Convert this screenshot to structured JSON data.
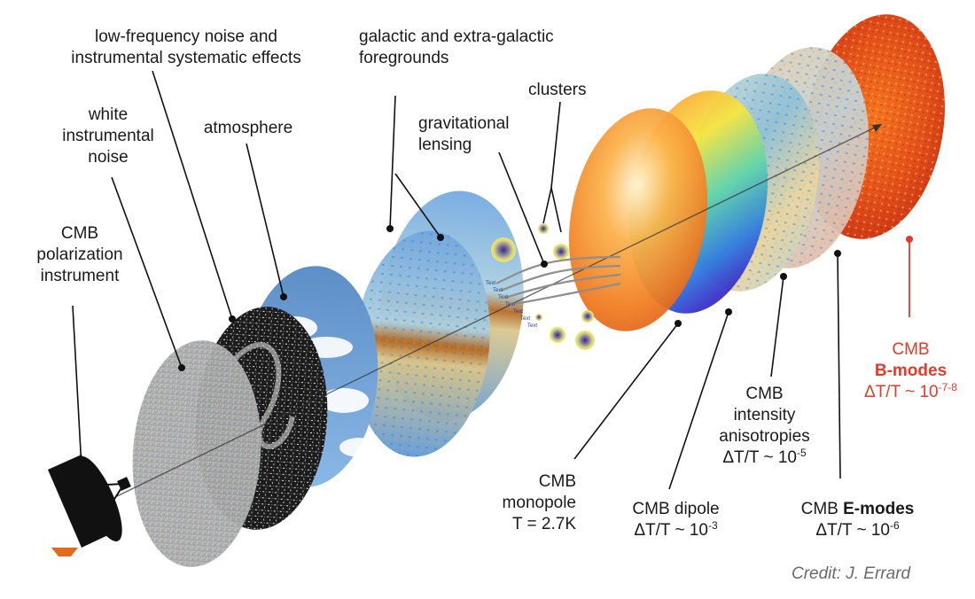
{
  "labels": {
    "instrument": [
      "CMB",
      "polarization",
      "instrument"
    ],
    "white_noise": [
      "white",
      "instrumental",
      "noise"
    ],
    "low_freq": [
      "low-frequency noise and",
      "instrumental systematic effects"
    ],
    "atmosphere": "atmosphere",
    "foregrounds": [
      "galactic and extra-galactic",
      "foregrounds"
    ],
    "lensing": [
      "gravitational",
      "lensing"
    ],
    "clusters": "clusters",
    "monopole": {
      "lines": [
        "CMB",
        "monopole",
        "T = 2.7K"
      ]
    },
    "dipole": {
      "name": "CMB dipole",
      "ratio": "ΔT/T ~ 10",
      "exp": "-3"
    },
    "intensity": {
      "lines": [
        "CMB",
        "intensity",
        "anisotropies"
      ],
      "ratio": "ΔT/T ~ 10",
      "exp": "-5"
    },
    "emodes": {
      "prefix": "CMB ",
      "bold": "E-modes",
      "ratio": "ΔT/T ~ 10",
      "exp": "-6"
    },
    "bmodes": {
      "prefix": "CMB",
      "bold": "B-modes",
      "ratio": "ΔT/T ~ 10",
      "exp": "-7-8"
    }
  },
  "lensing_texts": [
    "Text",
    "Text",
    "Text",
    "Text",
    "Text",
    "Text",
    "Text"
  ],
  "credit": "Credit: J. Errard",
  "colors": {
    "bmodes_accent": "#e23b2a",
    "text": "#1a1a1a",
    "credit": "#6a6a6a"
  }
}
